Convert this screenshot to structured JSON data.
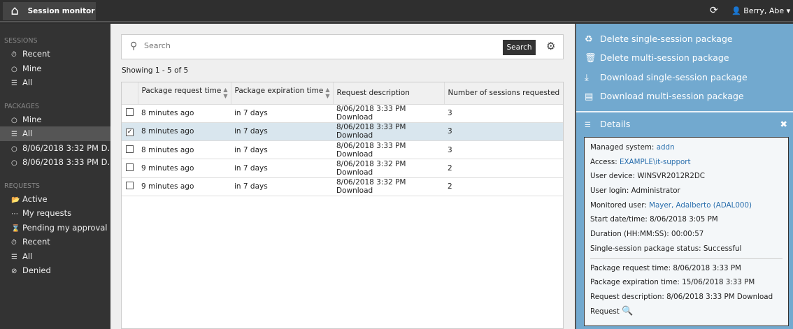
{
  "topbar": {
    "home_icon": "home-icon",
    "title": "Session monitor",
    "refresh_icon": "refresh-icon",
    "user": "Berry, Abe"
  },
  "sidebar": {
    "sessions": {
      "header": "SESSIONS",
      "items": [
        {
          "icon": "clock-icon",
          "label": "Recent"
        },
        {
          "icon": "circle-icon",
          "label": "Mine"
        },
        {
          "icon": "list-icon",
          "label": "All"
        }
      ]
    },
    "packages": {
      "header": "PACKAGES",
      "items": [
        {
          "icon": "circle-icon",
          "label": "Mine"
        },
        {
          "icon": "list-icon",
          "label": "All",
          "active": true
        },
        {
          "icon": "circle-icon",
          "label": "8/06/2018 3:32 PM D..."
        },
        {
          "icon": "circle-icon",
          "label": "8/06/2018 3:33 PM D..."
        }
      ]
    },
    "requests": {
      "header": "REQUESTS",
      "items": [
        {
          "icon": "folder-open-icon",
          "label": "Active"
        },
        {
          "icon": "ellipsis-icon",
          "label": "My requests"
        },
        {
          "icon": "hourglass-icon",
          "label": "Pending my approval"
        },
        {
          "icon": "clock-icon",
          "label": "Recent"
        },
        {
          "icon": "list-icon",
          "label": "All"
        },
        {
          "icon": "ban-icon",
          "label": "Denied"
        }
      ]
    }
  },
  "main": {
    "search": {
      "placeholder": "Search",
      "button": "Search"
    },
    "showing": "Showing 1 - 5 of 5",
    "table": {
      "columns": [
        "Package request time",
        "Package expiration time",
        "Request description",
        "Number of sessions requested"
      ],
      "rows": [
        {
          "checked": false,
          "cells": [
            "8 minutes ago",
            "in 7 days",
            "8/06/2018 3:33 PM Download",
            "3"
          ]
        },
        {
          "checked": true,
          "cells": [
            "8 minutes ago",
            "in 7 days",
            "8/06/2018 3:33 PM Download",
            "3"
          ]
        },
        {
          "checked": false,
          "cells": [
            "8 minutes ago",
            "in 7 days",
            "8/06/2018 3:33 PM Download",
            "3"
          ]
        },
        {
          "checked": false,
          "cells": [
            "9 minutes ago",
            "in 7 days",
            "8/06/2018 3:32 PM Download",
            "2"
          ]
        },
        {
          "checked": false,
          "cells": [
            "9 minutes ago",
            "in 7 days",
            "8/06/2018 3:32 PM Download",
            "2"
          ]
        }
      ]
    }
  },
  "actions": [
    {
      "icon": "recycle-icon",
      "label": "Delete single-session package"
    },
    {
      "icon": "trash-icon",
      "label": "Delete multi-session package"
    },
    {
      "icon": "download-icon",
      "label": "Download single-session package"
    },
    {
      "icon": "server-icon",
      "label": "Download multi-session package"
    }
  ],
  "details": {
    "title": "Details",
    "fields": [
      {
        "label": "Managed system: ",
        "value": "addn",
        "link": true
      },
      {
        "label": "Access: ",
        "value": "EXAMPLE\\it-support",
        "link": true
      },
      {
        "label": "User device: ",
        "value": "WINSVR2012R2DC"
      },
      {
        "label": "User login: ",
        "value": "Administrator"
      },
      {
        "label": "Monitored user: ",
        "value": "Mayer, Adalberto (ADAL000)",
        "link": true
      },
      {
        "label": "Start date/time: ",
        "value": "8/06/2018 3:05 PM"
      },
      {
        "label": "Duration (HH:MM:SS): ",
        "value": "00:00:57"
      },
      {
        "label": "Single-session package status: ",
        "value": "Successful"
      }
    ],
    "fields2": [
      {
        "label": "Package request time: ",
        "value": "8/06/2018 3:33 PM"
      },
      {
        "label": "Package expiration time: ",
        "value": "15/06/2018 3:33 PM"
      },
      {
        "label": "Request description: ",
        "value": "8/06/2018 3:33 PM Download"
      }
    ],
    "request_label": "Request"
  },
  "colors": {
    "accent": "#72a9cf",
    "link": "#2a6fad",
    "dark": "#333333",
    "selected_row": "#d9e6ee"
  }
}
